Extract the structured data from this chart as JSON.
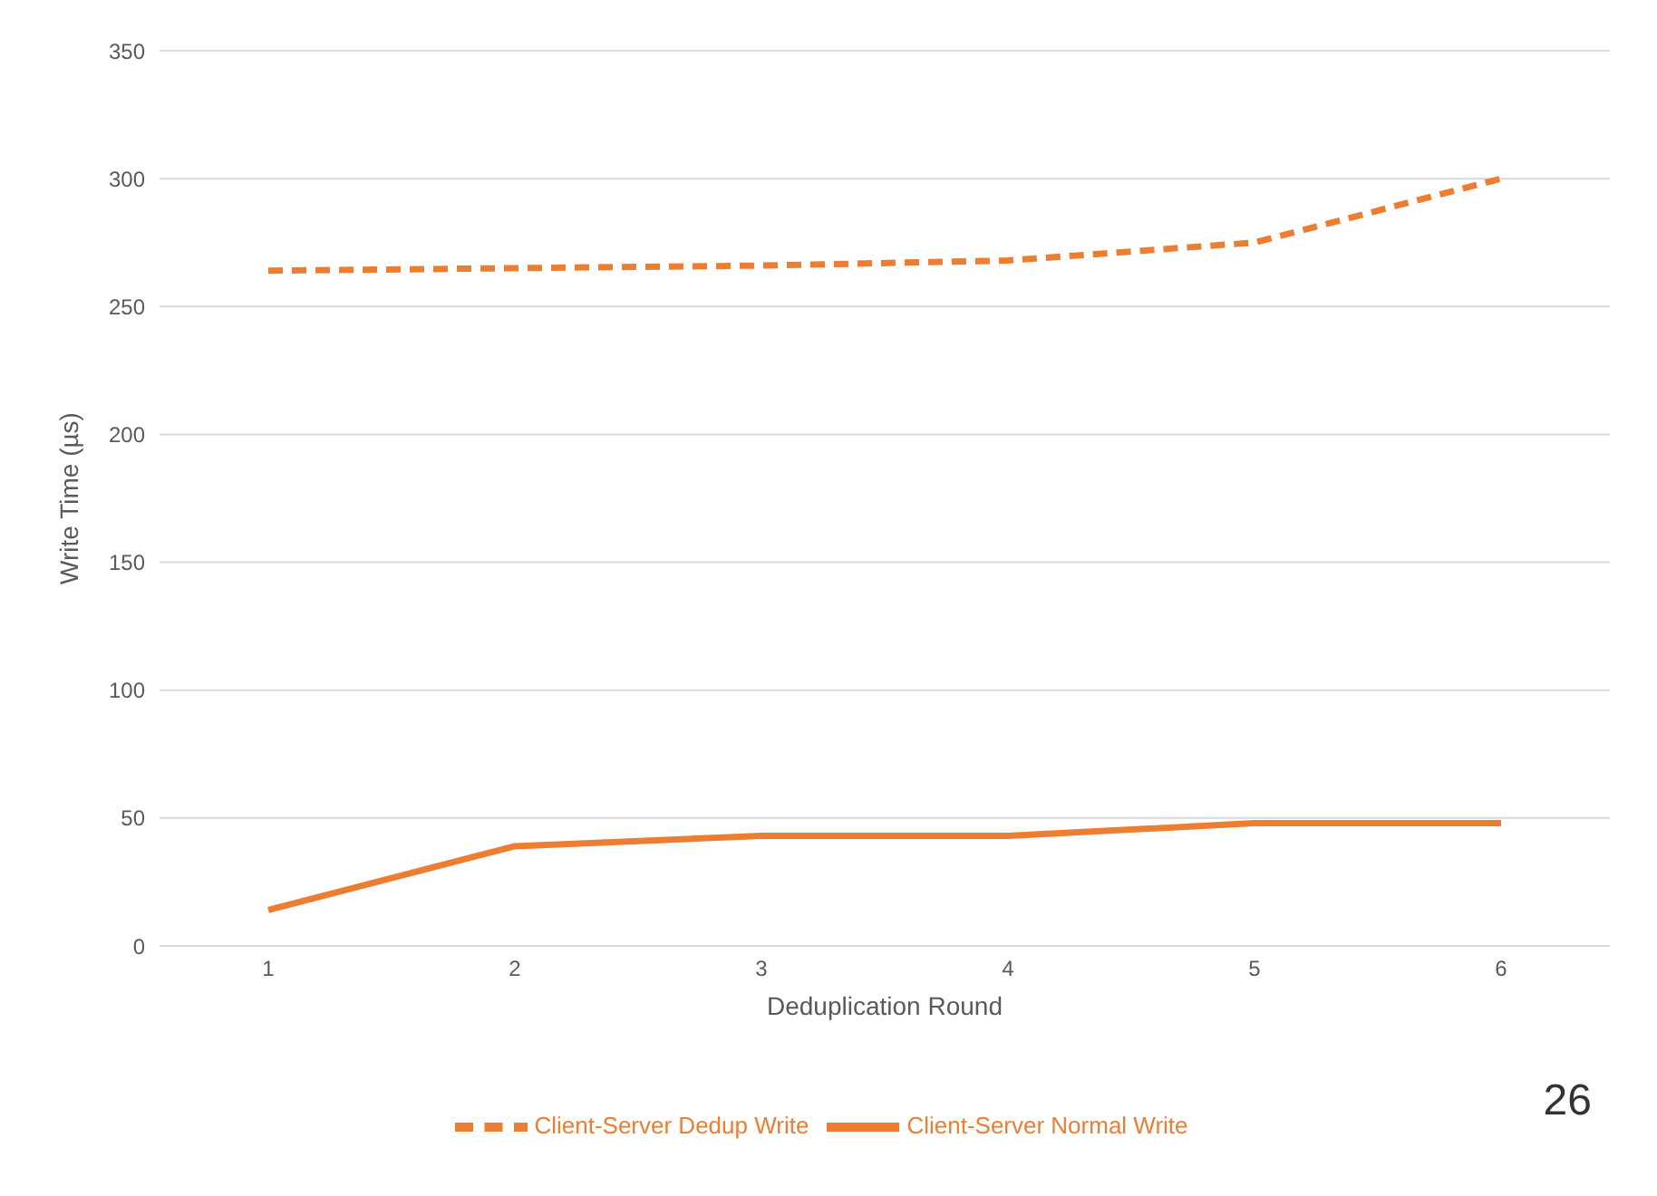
{
  "chart_data": {
    "type": "line",
    "xlabel": "Deduplication Round",
    "ylabel": "Write Time (µs)",
    "categories": [
      "1",
      "2",
      "3",
      "4",
      "5",
      "6"
    ],
    "series": [
      {
        "name": "Client-Server Normal Write",
        "color": "#ed7d31",
        "line_style": "solid",
        "values": [
          14,
          39,
          43,
          43,
          48,
          48
        ]
      },
      {
        "name": "Client-Server Dedup Write",
        "color": "#ed7d31",
        "line_style": "dashed",
        "values": [
          264,
          265,
          266,
          268,
          275,
          300
        ]
      }
    ],
    "ylim": [
      0,
      350
    ],
    "yticks": [
      0,
      50,
      100,
      150,
      200,
      250,
      300,
      350
    ],
    "grid": "y",
    "legend": "bottom",
    "marker": "none",
    "annotations": [
      "26"
    ]
  }
}
